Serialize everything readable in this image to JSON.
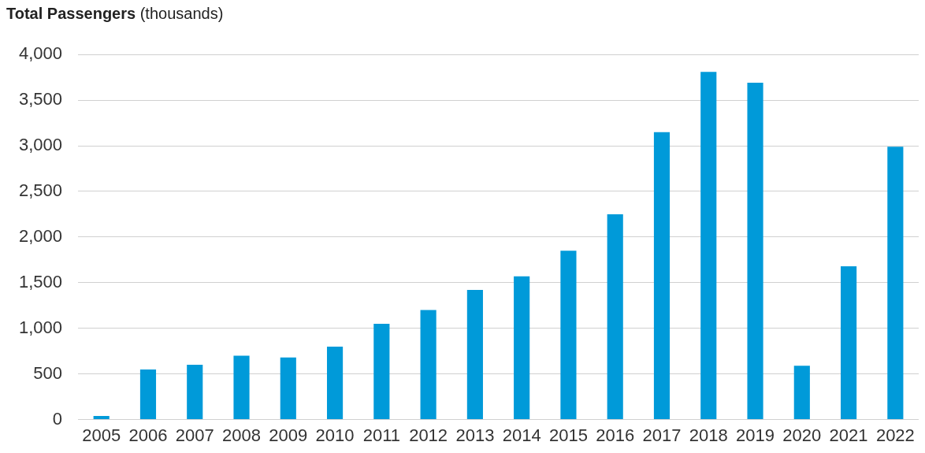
{
  "chart_data": {
    "type": "bar",
    "title": "Total Passengers",
    "subtitle": "(thousands)",
    "categories": [
      "2005",
      "2006",
      "2007",
      "2008",
      "2009",
      "2010",
      "2011",
      "2012",
      "2013",
      "2014",
      "2015",
      "2016",
      "2017",
      "2018",
      "2019",
      "2020",
      "2021",
      "2022"
    ],
    "values": [
      40,
      550,
      600,
      700,
      680,
      800,
      1050,
      1200,
      1420,
      1570,
      1850,
      2250,
      3150,
      3810,
      3690,
      590,
      1680,
      2990
    ],
    "color": "#009ad9",
    "ylim": [
      0,
      4000
    ],
    "yticks": [
      0,
      500,
      {
        "value": 1000,
        "label": "1,000"
      },
      {
        "value": 1500,
        "label": "1,500"
      },
      {
        "value": 2000,
        "label": "2,000"
      },
      {
        "value": 2500,
        "label": "2,500"
      },
      {
        "value": 3000,
        "label": "3,000"
      },
      {
        "value": 3500,
        "label": "3,500"
      },
      {
        "value": 4000,
        "label": "4,000"
      }
    ],
    "grid": "y",
    "legend": false
  }
}
